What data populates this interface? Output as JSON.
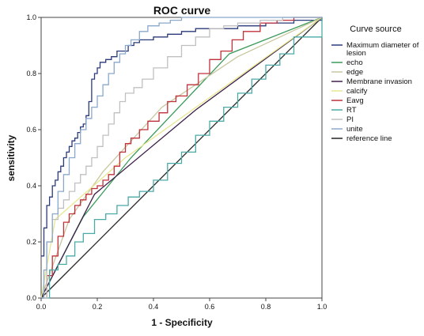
{
  "chart_data": {
    "type": "line",
    "title": "ROC curve",
    "xlabel": "1 - Specificity",
    "ylabel": "sensitivity",
    "xlim": [
      0,
      1
    ],
    "ylim": [
      0,
      1
    ],
    "xticks": [
      "0.0",
      "0.2",
      "0.4",
      "0.6",
      "0.8",
      "1.0"
    ],
    "yticks": [
      "0.0",
      "0.2",
      "0.4",
      "0.6",
      "0.8",
      "1.0"
    ],
    "grid": false,
    "legend_title": "Curve source",
    "legend_position": "right",
    "series": [
      {
        "name": "Maximum diameter of lesion",
        "color": "#2b3a7a",
        "step": true,
        "x": [
          0,
          0.01,
          0.02,
          0.03,
          0.04,
          0.05,
          0.06,
          0.07,
          0.08,
          0.09,
          0.1,
          0.11,
          0.12,
          0.13,
          0.14,
          0.15,
          0.16,
          0.17,
          0.18,
          0.19,
          0.2,
          0.21,
          0.22,
          0.23,
          0.25,
          0.27,
          0.29,
          0.31,
          0.33,
          0.35,
          0.4,
          0.45,
          0.5,
          0.55,
          0.6,
          0.7,
          0.8,
          0.9,
          1.0
        ],
        "y": [
          0.15,
          0.25,
          0.33,
          0.36,
          0.4,
          0.42,
          0.45,
          0.47,
          0.5,
          0.52,
          0.54,
          0.56,
          0.57,
          0.59,
          0.61,
          0.62,
          0.65,
          0.7,
          0.78,
          0.8,
          0.82,
          0.84,
          0.84,
          0.85,
          0.86,
          0.88,
          0.88,
          0.9,
          0.91,
          0.92,
          0.93,
          0.94,
          0.95,
          0.96,
          0.96,
          0.97,
          0.98,
          0.99,
          1.0
        ]
      },
      {
        "name": "echo",
        "color": "#3a9a5a",
        "step": false,
        "x": [
          0,
          0.15,
          0.32,
          0.67,
          1.0
        ],
        "y": [
          0,
          0.29,
          0.5,
          0.87,
          1.0
        ]
      },
      {
        "name": "edge",
        "color": "#c8c7a0",
        "step": false,
        "x": [
          0,
          0.1,
          0.22,
          0.43,
          0.7,
          1.0
        ],
        "y": [
          0,
          0.28,
          0.45,
          0.68,
          0.86,
          1.0
        ]
      },
      {
        "name": "Membrane invasion",
        "color": "#3d1f4a",
        "step": false,
        "x": [
          0,
          0.19,
          0.55,
          1.0
        ],
        "y": [
          0,
          0.37,
          0.67,
          1.0
        ]
      },
      {
        "name": "calcify",
        "color": "#e7e790",
        "step": false,
        "x": [
          0,
          0.05,
          0.3,
          1.0
        ],
        "y": [
          0,
          0.28,
          0.5,
          1.0
        ]
      },
      {
        "name": "Eavg",
        "color": "#c0303a",
        "step": true,
        "x": [
          0,
          0.02,
          0.04,
          0.06,
          0.08,
          0.1,
          0.12,
          0.14,
          0.16,
          0.18,
          0.2,
          0.22,
          0.24,
          0.26,
          0.28,
          0.3,
          0.32,
          0.35,
          0.38,
          0.42,
          0.45,
          0.48,
          0.52,
          0.56,
          0.6,
          0.64,
          0.68,
          0.72,
          0.78,
          0.84,
          0.9,
          1.0
        ],
        "y": [
          0,
          0.08,
          0.15,
          0.22,
          0.27,
          0.3,
          0.33,
          0.35,
          0.37,
          0.39,
          0.4,
          0.42,
          0.44,
          0.47,
          0.52,
          0.55,
          0.57,
          0.6,
          0.63,
          0.66,
          0.7,
          0.72,
          0.76,
          0.8,
          0.85,
          0.88,
          0.92,
          0.95,
          0.98,
          0.99,
          1.0,
          1.0
        ]
      },
      {
        "name": "RT",
        "color": "#4aaaa6",
        "step": true,
        "x": [
          0,
          0.03,
          0.06,
          0.09,
          0.12,
          0.15,
          0.19,
          0.23,
          0.27,
          0.31,
          0.35,
          0.4,
          0.45,
          0.5,
          0.55,
          0.6,
          0.65,
          0.7,
          0.75,
          0.8,
          0.85,
          0.9,
          1.0
        ],
        "y": [
          0,
          0.1,
          0.12,
          0.15,
          0.2,
          0.23,
          0.28,
          0.3,
          0.33,
          0.36,
          0.38,
          0.42,
          0.48,
          0.52,
          0.58,
          0.63,
          0.68,
          0.73,
          0.78,
          0.83,
          0.87,
          0.93,
          1.0
        ]
      },
      {
        "name": "PI",
        "color": "#c0c0c0",
        "step": true,
        "x": [
          0,
          0.02,
          0.04,
          0.06,
          0.08,
          0.1,
          0.12,
          0.14,
          0.16,
          0.18,
          0.2,
          0.22,
          0.24,
          0.26,
          0.28,
          0.3,
          0.33,
          0.36,
          0.4,
          0.45,
          0.5,
          0.55,
          0.6,
          0.65,
          0.7,
          0.78,
          0.86,
          1.0
        ],
        "y": [
          0,
          0.2,
          0.28,
          0.32,
          0.35,
          0.38,
          0.41,
          0.44,
          0.47,
          0.5,
          0.54,
          0.58,
          0.62,
          0.66,
          0.7,
          0.73,
          0.75,
          0.78,
          0.82,
          0.86,
          0.9,
          0.93,
          0.96,
          0.97,
          0.98,
          0.99,
          1.0,
          1.0
        ]
      },
      {
        "name": "unite",
        "color": "#8aa8cc",
        "step": true,
        "x": [
          0,
          0.01,
          0.02,
          0.04,
          0.06,
          0.08,
          0.1,
          0.12,
          0.14,
          0.16,
          0.18,
          0.2,
          0.22,
          0.24,
          0.26,
          0.28,
          0.3,
          0.32,
          0.35,
          0.38,
          0.42,
          0.46,
          0.5,
          0.55,
          0.6,
          0.7,
          0.8,
          1.0
        ],
        "y": [
          0,
          0.1,
          0.2,
          0.3,
          0.38,
          0.44,
          0.5,
          0.55,
          0.6,
          0.64,
          0.68,
          0.72,
          0.76,
          0.8,
          0.84,
          0.87,
          0.9,
          0.92,
          0.95,
          0.97,
          0.98,
          0.99,
          1.0,
          1.0,
          1.0,
          1.0,
          1.0,
          1.0
        ]
      },
      {
        "name": "reference line",
        "color": "#222222",
        "step": false,
        "x": [
          0,
          1
        ],
        "y": [
          0,
          1
        ]
      }
    ]
  }
}
